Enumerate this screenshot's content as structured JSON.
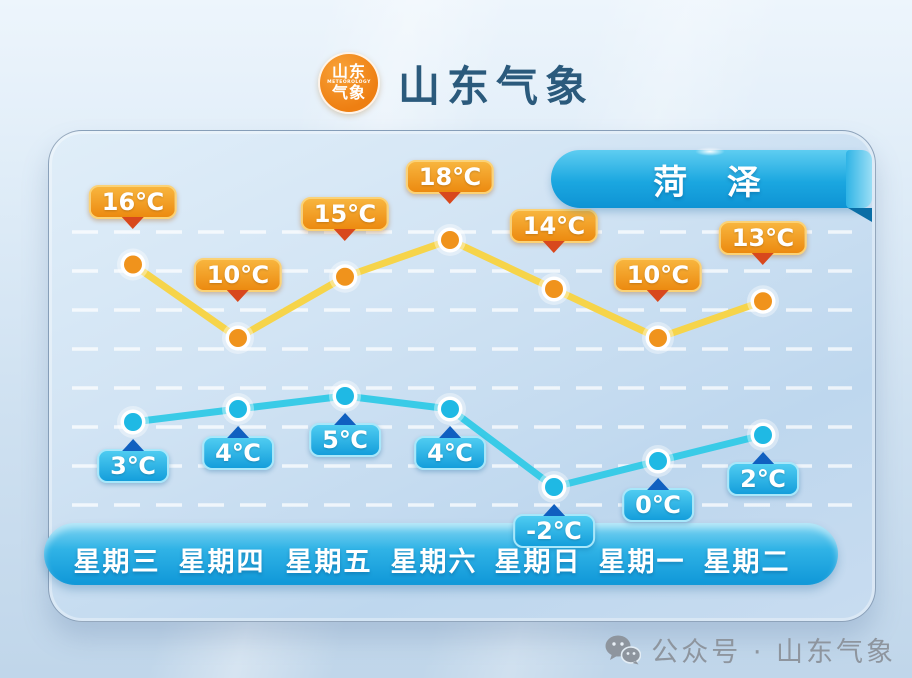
{
  "header": {
    "logo": {
      "top": "山东",
      "middle": "METEOROLOGY",
      "bottom": "气象"
    },
    "title": "山东气象"
  },
  "city_badge": "菏 泽",
  "chart_data": {
    "type": "line",
    "title": "菏泽",
    "categories": [
      "星期三",
      "星期四",
      "星期五",
      "星期六",
      "星期日",
      "星期一",
      "星期二"
    ],
    "series": [
      {
        "name": "high",
        "label_position": "above",
        "unit": "℃",
        "values": [
          16,
          10,
          15,
          18,
          14,
          10,
          13
        ]
      },
      {
        "name": "low",
        "label_position": "below",
        "unit": "℃",
        "values": [
          3,
          4,
          5,
          4,
          -2,
          0,
          2
        ]
      }
    ],
    "grid": true,
    "legend": "none",
    "ylabel": "",
    "xlabel": ""
  },
  "colors": {
    "high_badge": "#EE8F14",
    "high_line": "#F6D44A",
    "high_point": "#F0931C",
    "high_pointer": "#D8481D",
    "low_badge": "#1BA5DE",
    "low_line": "#39CBE7",
    "low_point": "#1FB9E4",
    "low_pointer": "#1060C0",
    "ribbon_blue": "#1FA9E2",
    "title_text": "#2B5A7C"
  },
  "footer": {
    "text": "公众号 · 山东气象"
  }
}
